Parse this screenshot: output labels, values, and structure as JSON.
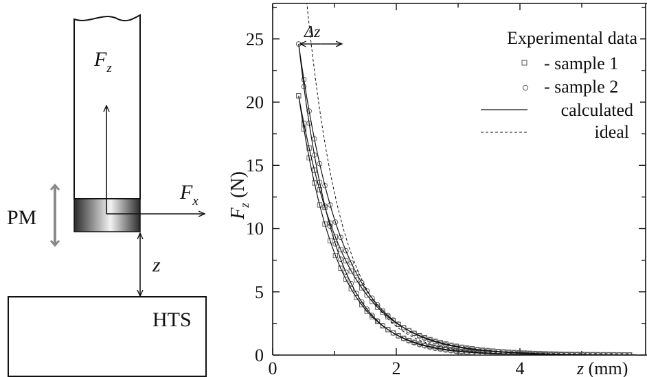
{
  "diagram": {
    "labels": {
      "fz": "F",
      "fz_sub": "z",
      "fx": "F",
      "fx_sub": "x",
      "pm": "PM",
      "z": "z",
      "hts": "HTS"
    },
    "colors": {
      "arrow_gray": "#8a8a8a",
      "magnet_dark": "#2b2b2b",
      "magnet_light": "#f2f2f2"
    }
  },
  "chart_data": {
    "type": "line",
    "xlim": [
      0,
      5.8
    ],
    "ylim": [
      0,
      27.5
    ],
    "xticks": [
      "0",
      "2",
      "4"
    ],
    "yticks": [
      "0",
      "5",
      "10",
      "15",
      "20",
      "25"
    ],
    "xlabel": "z",
    "xlabel_unit": "(mm)",
    "ylabel": "F",
    "ylabel_sub": "z",
    "ylabel_unit": "(N)",
    "annotation": "Δz",
    "legend_title": "Experimental data",
    "legend": {
      "sample1": "- sample 1",
      "sample2": "- sample 2",
      "calculated": "calculated",
      "ideal": "ideal"
    },
    "legend_position": "top-right",
    "series": [
      {
        "name": "sample 1",
        "marker": "square",
        "branches": [
          {
            "x0": 0.42,
            "y0": 20.5,
            "k": 0.28
          },
          {
            "x0": 0.42,
            "y0": 20.5,
            "k": 0.34
          }
        ]
      },
      {
        "name": "sample 2",
        "marker": "circle",
        "branches": [
          {
            "x0": 0.42,
            "y0": 24.6,
            "k": 0.26
          },
          {
            "x0": 0.42,
            "y0": 24.6,
            "k": 0.315
          }
        ]
      },
      {
        "name": "calculated",
        "style": "solid",
        "branches": [
          {
            "x0": 0.42,
            "y0": 20.5,
            "k": 0.28
          },
          {
            "x0": 0.42,
            "y0": 20.5,
            "k": 0.34
          },
          {
            "x0": 0.42,
            "y0": 24.6,
            "k": 0.26
          },
          {
            "x0": 0.42,
            "y0": 24.6,
            "k": 0.315
          }
        ]
      },
      {
        "name": "ideal",
        "style": "dashed",
        "branches": [
          {
            "x0": 0.42,
            "y0": 35.0,
            "k": 0.26
          }
        ]
      }
    ],
    "delta_z": {
      "from": 0.42,
      "to": 1.12,
      "y": 24.6
    }
  }
}
